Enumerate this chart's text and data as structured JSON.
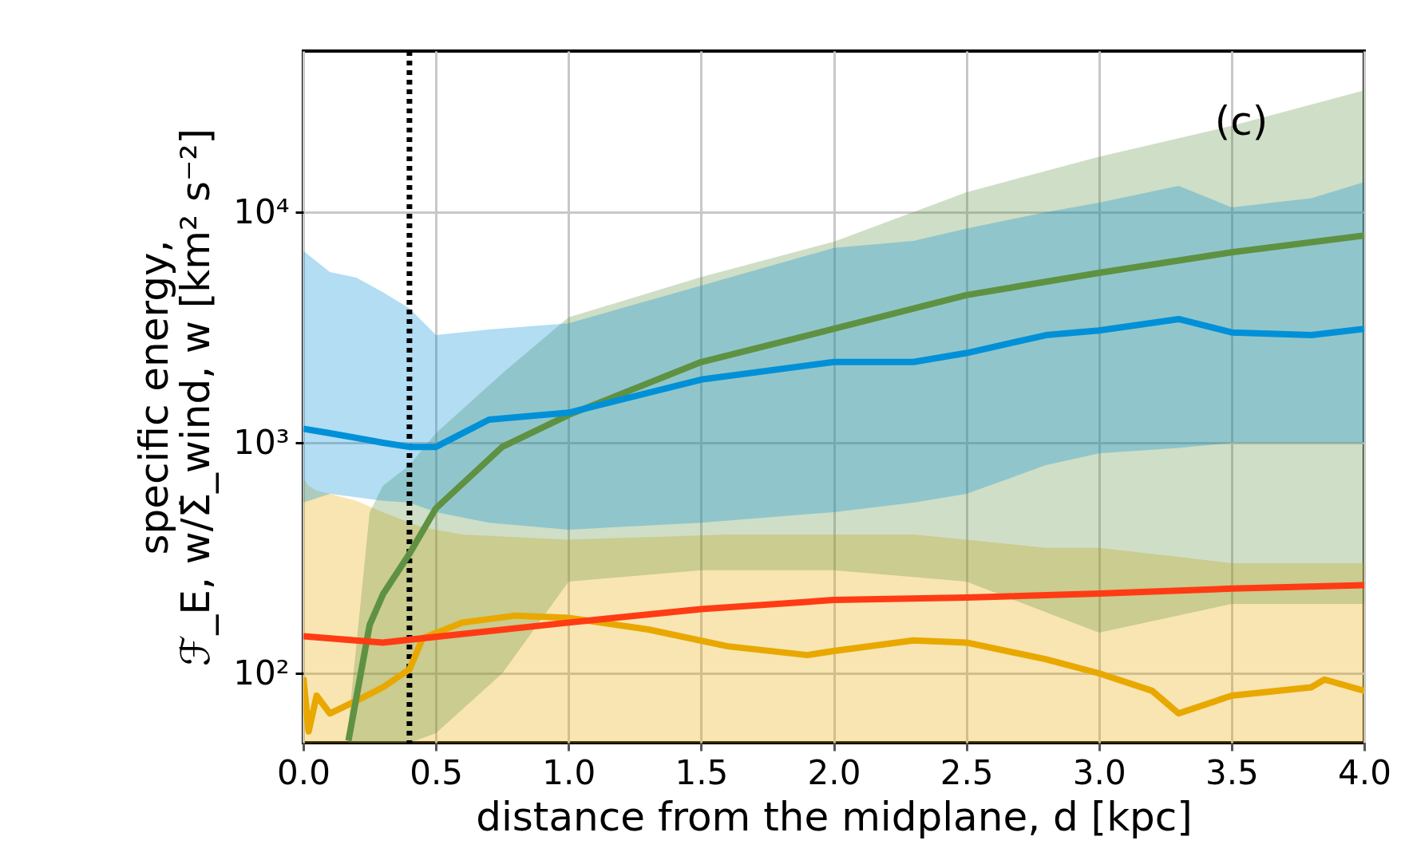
{
  "chart_data": {
    "type": "line",
    "xlabel": "distance from the midplane, d [kpc]",
    "ylabel": "specific energy,\nℱ_E, w/Σ̇_wind, w [km² s⁻²]",
    "annotations": [
      "(c)"
    ],
    "log": "y",
    "grid": true,
    "line_style": "solid",
    "marker": "none",
    "xlim": [
      0,
      4
    ],
    "ylim": [
      50,
      50000
    ],
    "xticks": [
      {
        "value": 0,
        "label": "0.0"
      },
      0.5,
      {
        "value": 1,
        "label": "1.0"
      },
      1.5,
      {
        "value": 2,
        "label": "2.0"
      },
      2.5,
      {
        "value": 3,
        "label": "3.0"
      },
      3.5,
      {
        "value": 4,
        "label": "4.0"
      }
    ],
    "yticks": [
      {
        "value": 100,
        "label": "10²"
      },
      {
        "value": 1000,
        "label": "10³"
      },
      {
        "value": 10000,
        "label": "10⁴"
      }
    ],
    "ref_lines": [
      {
        "axis": "x",
        "value": 0.4,
        "label": null,
        "color": "#000000",
        "line_style": "dotted"
      }
    ],
    "series": [
      {
        "color": "#e8a800",
        "x": [
          0,
          0.02,
          0.05,
          0.1,
          0.2,
          0.3,
          0.4,
          0.45,
          0.6,
          0.8,
          1.0,
          1.3,
          1.6,
          1.9,
          2.0,
          2.3,
          2.5,
          2.8,
          3.0,
          3.2,
          3.3,
          3.5,
          3.8,
          3.85,
          4.0
        ],
        "values": [
          96,
          56,
          80,
          67,
          76,
          87,
          104,
          142,
          166,
          178,
          174,
          155,
          131,
          120,
          125,
          139,
          136,
          115,
          100,
          84,
          67,
          80,
          87,
          94,
          84
        ],
        "lower": [
          50,
          50,
          50,
          50,
          50,
          50,
          50,
          50,
          50,
          50,
          50,
          50,
          50,
          50,
          50,
          50,
          50,
          50,
          50,
          50,
          50,
          50,
          50,
          50,
          50
        ],
        "upper": [
          700,
          650,
          620,
          600,
          560,
          500,
          450,
          430,
          400,
          390,
          380,
          390,
          400,
          400,
          400,
          400,
          380,
          350,
          350,
          330,
          320,
          300,
          300,
          300,
          300
        ]
      },
      {
        "color": "#5f9142",
        "x": [
          0.17,
          0.25,
          0.3,
          0.4,
          0.5,
          0.75,
          1.0,
          1.5,
          2.0,
          2.5,
          3.0,
          3.5,
          4.0
        ],
        "values": [
          51,
          162,
          220,
          330,
          520,
          960,
          1320,
          2240,
          3120,
          4370,
          5460,
          6700,
          7920
        ],
        "lower": [
          50,
          50,
          50,
          50,
          55,
          100,
          250,
          280,
          280,
          250,
          150,
          200,
          200
        ],
        "upper": [
          60,
          500,
          650,
          800,
          1100,
          2000,
          3500,
          5230,
          7450,
          12200,
          17400,
          23700,
          33800
        ]
      },
      {
        "color": "#0090d8",
        "x": [
          0,
          0.1,
          0.2,
          0.3,
          0.4,
          0.5,
          0.7,
          1.0,
          1.5,
          2.0,
          2.3,
          2.5,
          2.8,
          3.0,
          3.3,
          3.5,
          3.8,
          4.0
        ],
        "values": [
          1150,
          1100,
          1050,
          1000,
          960,
          960,
          1260,
          1350,
          1880,
          2240,
          2240,
          2450,
          2930,
          3070,
          3440,
          3010,
          2930,
          3120
        ],
        "lower": [
          550,
          600,
          580,
          560,
          550,
          500,
          450,
          420,
          450,
          500,
          550,
          600,
          800,
          900,
          950,
          1000,
          1000,
          1000
        ],
        "upper": [
          6800,
          5500,
          5200,
          4500,
          3830,
          2930,
          3100,
          3300,
          4800,
          7000,
          7500,
          8500,
          10000,
          11000,
          13000,
          10500,
          11500,
          13500
        ]
      },
      {
        "color": "#ff3b14",
        "x": [
          0,
          0.3,
          0.5,
          1.0,
          1.5,
          2.0,
          2.5,
          3.0,
          3.5,
          4.0
        ],
        "values": [
          145,
          136,
          144,
          166,
          190,
          208,
          213,
          222,
          233,
          241
        ]
      }
    ]
  }
}
